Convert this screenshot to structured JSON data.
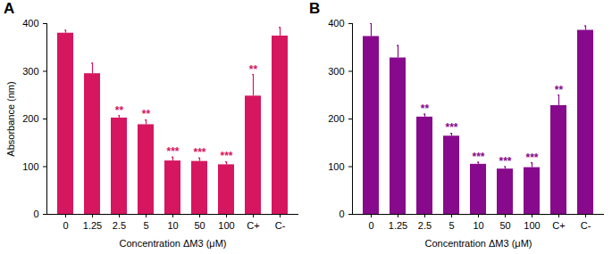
{
  "chart_data": [
    {
      "type": "bar",
      "title": "A",
      "categories": [
        "0",
        "1.25",
        "2.5",
        "5",
        "10",
        "50",
        "100",
        "C+",
        "C-"
      ],
      "values": [
        380,
        295,
        202,
        188,
        112,
        111,
        104,
        248,
        374
      ],
      "errors": [
        6,
        22,
        5,
        10,
        8,
        7,
        6,
        45,
        18
      ],
      "significance": [
        null,
        null,
        "**",
        "**",
        "***",
        "***",
        "***",
        "**",
        null
      ],
      "color": "#d6175f",
      "x_label": "Concentration ΔM3 (μM)",
      "y_label": "Absorbance (nm)",
      "ylim": [
        0,
        400
      ],
      "yticks": [
        0,
        100,
        200,
        300,
        400
      ],
      "grid": false
    },
    {
      "type": "bar",
      "title": "B",
      "categories": [
        "0",
        "1.25",
        "2.5",
        "5",
        "10",
        "50",
        "100",
        "C+",
        "C-"
      ],
      "values": [
        373,
        328,
        204,
        164,
        105,
        95,
        98,
        228,
        386
      ],
      "errors": [
        27,
        26,
        6,
        6,
        4,
        5,
        10,
        22,
        9
      ],
      "significance": [
        null,
        null,
        "**",
        "***",
        "***",
        "***",
        "***",
        "**",
        null
      ],
      "color": "#870a8c",
      "x_label": "Concentration ΔM3 (μM)",
      "ylim": [
        0,
        400
      ],
      "yticks": [
        0,
        100,
        200,
        300,
        400
      ],
      "grid": false
    }
  ]
}
